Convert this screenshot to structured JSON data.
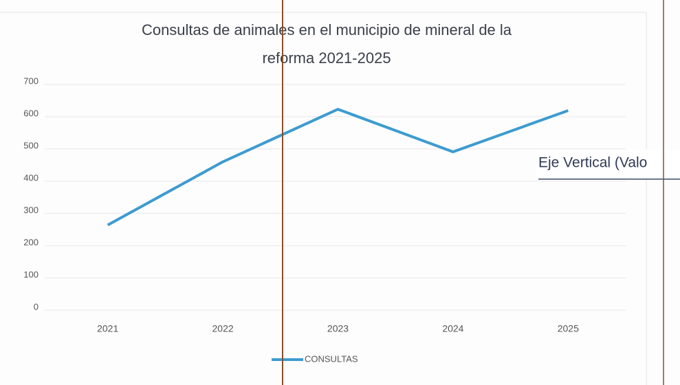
{
  "chart_data": {
    "type": "line",
    "title": [
      "Consultas de animales en el municipio de mineral de  la",
      "reforma 2021-2025"
    ],
    "categories": [
      "2021",
      "2022",
      "2023",
      "2024",
      "2025"
    ],
    "series": [
      {
        "name": "CONSULTAS",
        "color": "#3d9bd0",
        "values": [
          264,
          460,
          623,
          491,
          619
        ]
      }
    ],
    "ylim": [
      0,
      700
    ],
    "yticks": [
      0,
      100,
      200,
      300,
      400,
      500,
      600,
      700
    ],
    "grid": true,
    "legend": "bottom",
    "tooltip": "Eje Vertical (Valo"
  }
}
